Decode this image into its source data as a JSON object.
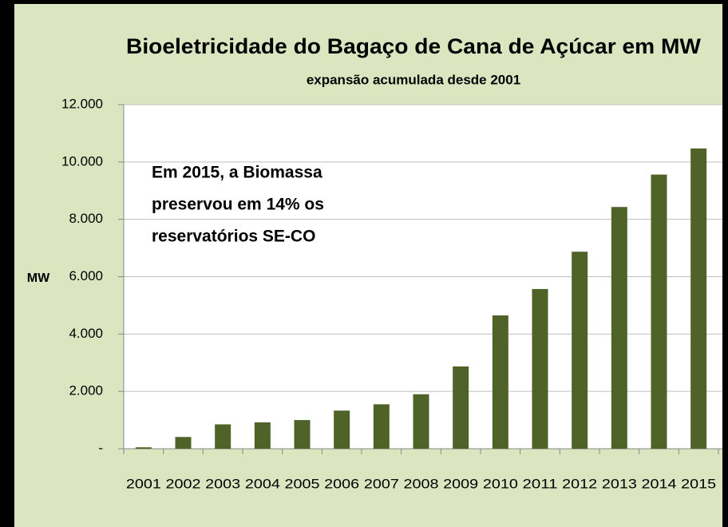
{
  "chart_data": {
    "type": "bar",
    "title": "Bioeletricidade do Bagaço de Cana de Açúcar em MW",
    "subtitle": "expansão acumulada desde 2001",
    "y_label": "MW",
    "annotation": [
      "Em 2015, a Biomassa",
      "preservou em 14% os",
      "reservatórios SE-CO"
    ],
    "categories": [
      "2001",
      "2002",
      "2003",
      "2004",
      "2005",
      "2006",
      "2007",
      "2008",
      "2009",
      "2010",
      "2011",
      "2012",
      "2013",
      "2014",
      "2015"
    ],
    "values": [
      50,
      410,
      850,
      920,
      1000,
      1330,
      1550,
      1900,
      2870,
      4650,
      5570,
      6870,
      8430,
      9560,
      10470
    ],
    "color": "#4f6228",
    "ylim": [
      0,
      12000
    ],
    "yticks": [
      {
        "value": 0,
        "label": "-"
      },
      {
        "value": 2000,
        "label": "2.000"
      },
      {
        "value": 4000,
        "label": "4.000"
      },
      {
        "value": 6000,
        "label": "6.000"
      },
      {
        "value": 8000,
        "label": "8.000"
      },
      {
        "value": 10000,
        "label": "10.000"
      },
      {
        "value": 12000,
        "label": "12.000"
      }
    ],
    "grid": true
  }
}
